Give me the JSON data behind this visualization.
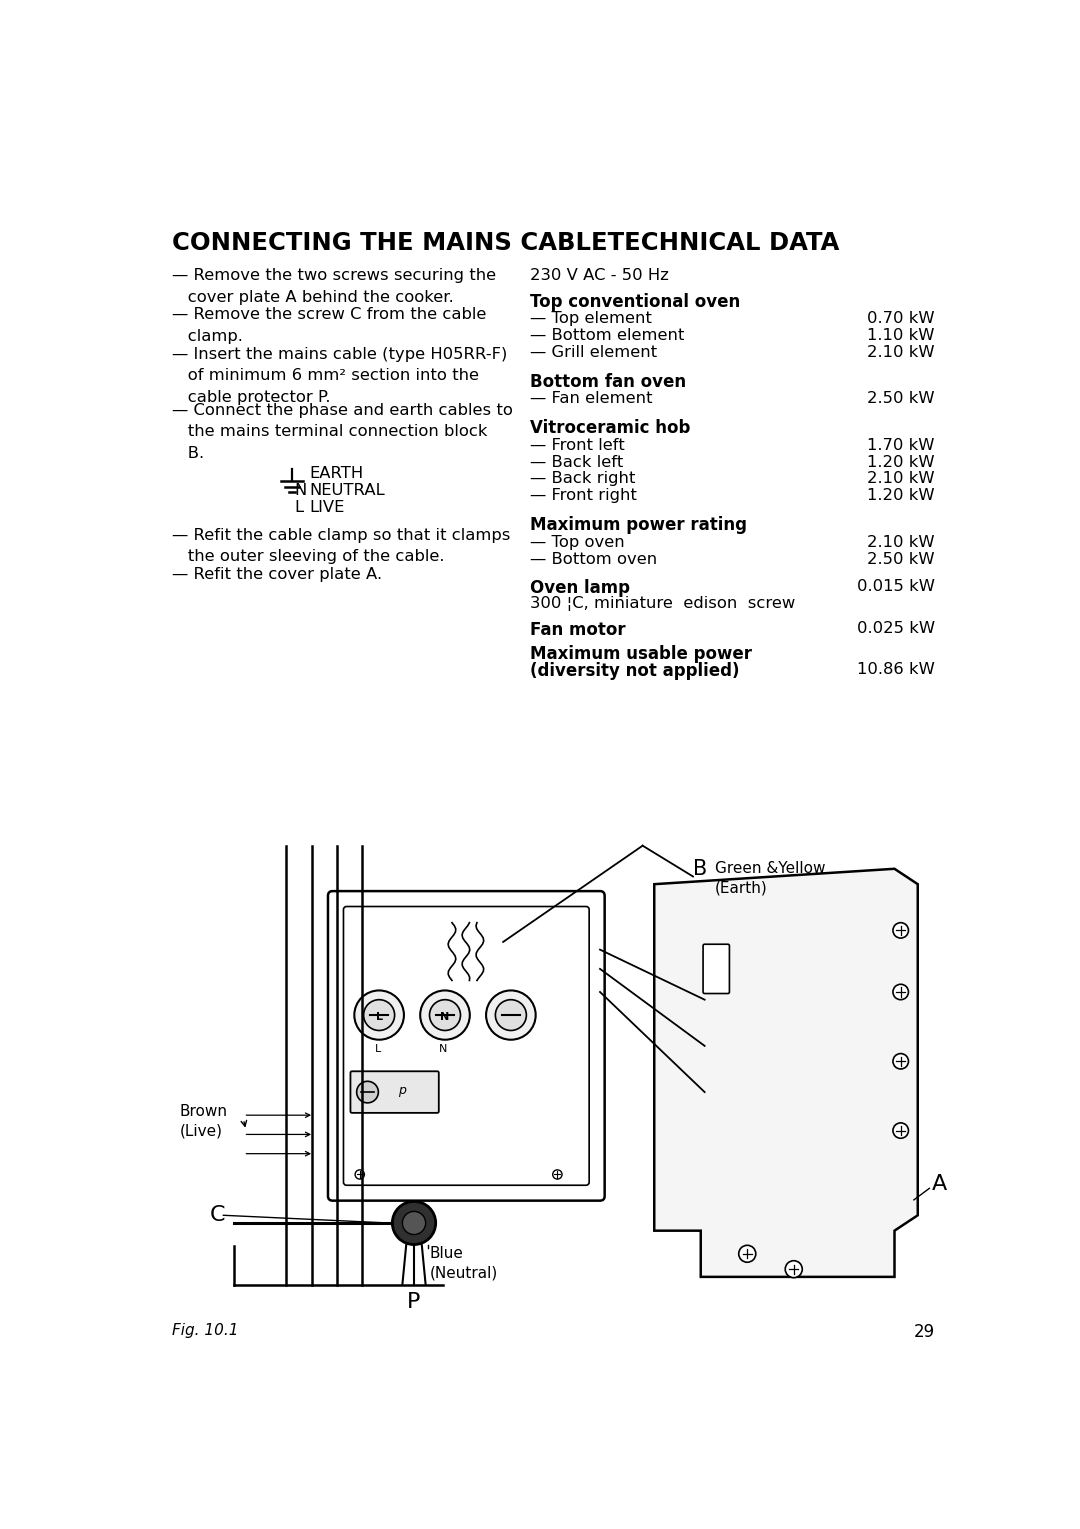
{
  "title": "CONNECTING THE MAINS CABLETECHNICAL DATA",
  "bg_color": "#ffffff",
  "text_color": "#000000",
  "voltage": "230 V AC - 50 Hz",
  "sections": [
    {
      "heading": "Top conventional oven",
      "items": [
        [
          "— Top element",
          "0.70 kW"
        ],
        [
          "— Bottom element",
          "1.10 kW"
        ],
        [
          "— Grill element",
          "2.10 kW"
        ]
      ]
    },
    {
      "heading": "Bottom fan oven",
      "items": [
        [
          "— Fan element",
          "2.50 kW"
        ]
      ]
    },
    {
      "heading": "Vitroceramic hob",
      "items": [
        [
          "— Front left",
          "1.70 kW"
        ],
        [
          "— Back left",
          "1.20 kW"
        ],
        [
          "— Back right",
          "2.10 kW"
        ],
        [
          "— Front right",
          "1.20 kW"
        ]
      ]
    },
    {
      "heading": "Maximum power rating",
      "items": [
        [
          "— Top oven",
          "2.10 kW"
        ],
        [
          "— Bottom oven",
          "2.50 kW"
        ]
      ]
    }
  ],
  "oven_lamp_label": "Oven lamp",
  "oven_lamp_value": "0.015 kW",
  "oven_lamp_sub": "300 ¦C, miniature  edison  screw",
  "fan_motor_label": "Fan motor",
  "fan_motor_value": "0.025 kW",
  "max_power_label": "Maximum usable power",
  "max_power_label2": "(diversity not applied)",
  "max_power_value": "10.86 kW",
  "fig_label": "Fig. 10.1",
  "page_number": "29",
  "left_bullets": [
    "— Remove the two screws securing the\n   cover plate A behind the cooker.",
    "— Remove the screw C from the cable\n   clamp.",
    "— Insert the mains cable (type H05RR-F)\n   of minimum 6 mm² section into the\n   cable protector P.",
    "— Connect the phase and earth cables to\n   the mains terminal connection block\n   B."
  ],
  "left_bullets2": [
    "— Refit the cable clamp so that it clamps\n   the outer sleeving of the cable.",
    "— Refit the cover plate A."
  ],
  "earth_labels": [
    [
      "⊥",
      "EARTH"
    ],
    [
      "N",
      "NEUTRAL"
    ],
    [
      "L",
      "LIVE"
    ]
  ]
}
